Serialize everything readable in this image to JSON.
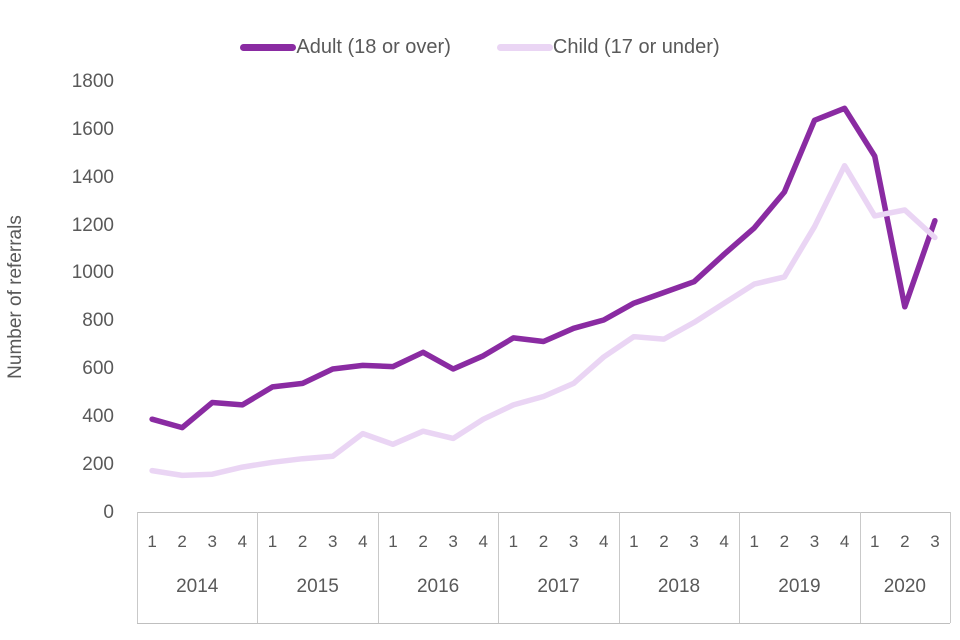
{
  "legend": {
    "items": [
      {
        "label": "Adult (18 or over)",
        "color": "#8A2BA2"
      },
      {
        "label": "Child (17 or under)",
        "color": "#EAD5F4"
      }
    ]
  },
  "y_axis": {
    "title": "Number of referrals",
    "ticks": [
      1800,
      1600,
      1400,
      1200,
      1000,
      800,
      600,
      400,
      200,
      0
    ]
  },
  "x_axis": {
    "years": [
      {
        "label": "2014",
        "quarters": [
          "1",
          "2",
          "3",
          "4"
        ]
      },
      {
        "label": "2015",
        "quarters": [
          "1",
          "2",
          "3",
          "4"
        ]
      },
      {
        "label": "2016",
        "quarters": [
          "1",
          "2",
          "3",
          "4"
        ]
      },
      {
        "label": "2017",
        "quarters": [
          "1",
          "2",
          "3",
          "4"
        ]
      },
      {
        "label": "2018",
        "quarters": [
          "1",
          "2",
          "3",
          "4"
        ]
      },
      {
        "label": "2019",
        "quarters": [
          "1",
          "2",
          "3",
          "4"
        ]
      },
      {
        "label": "2020",
        "quarters": [
          "1",
          "2",
          "3"
        ]
      }
    ]
  },
  "chart_data": {
    "type": "line",
    "title": "",
    "xlabel": "",
    "ylabel": "Number of referrals",
    "ylim": [
      0,
      1800
    ],
    "ytick_step": 200,
    "grid": false,
    "legend_position": "top",
    "categories": [
      "2014 Q1",
      "2014 Q2",
      "2014 Q3",
      "2014 Q4",
      "2015 Q1",
      "2015 Q2",
      "2015 Q3",
      "2015 Q4",
      "2016 Q1",
      "2016 Q2",
      "2016 Q3",
      "2016 Q4",
      "2017 Q1",
      "2017 Q2",
      "2017 Q3",
      "2017 Q4",
      "2018 Q1",
      "2018 Q2",
      "2018 Q3",
      "2018 Q4",
      "2019 Q1",
      "2019 Q2",
      "2019 Q3",
      "2019 Q4",
      "2020 Q1",
      "2020 Q2",
      "2020 Q3"
    ],
    "series": [
      {
        "name": "Adult (18 or over)",
        "color": "#8A2BA2",
        "values": [
          390,
          355,
          460,
          450,
          525,
          540,
          600,
          615,
          610,
          670,
          600,
          655,
          730,
          715,
          770,
          805,
          875,
          920,
          965,
          1080,
          1190,
          1340,
          1640,
          1690,
          1490,
          860,
          1220
        ]
      },
      {
        "name": "Child (17 or under)",
        "color": "#EAD5F4",
        "values": [
          175,
          155,
          160,
          190,
          210,
          225,
          235,
          330,
          285,
          340,
          310,
          390,
          450,
          485,
          540,
          650,
          735,
          725,
          795,
          875,
          955,
          985,
          1195,
          1450,
          1240,
          1265,
          1150
        ]
      }
    ]
  }
}
